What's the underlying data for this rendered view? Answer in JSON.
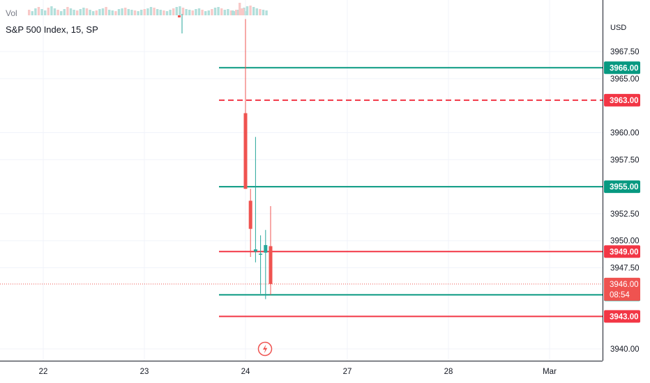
{
  "header": {
    "volume_label": "Vol",
    "title": "S&P 500 Index, 15, SP"
  },
  "currency": "USD",
  "countdown": "08:54",
  "colors": {
    "up": "#26a69a",
    "down": "#ef5350",
    "grid": "#f0f3fa",
    "axis_text": "#131722",
    "green_line": "#089981",
    "red_line": "#f23645"
  },
  "icons": {
    "event_marker": "lightning-bolt-icon"
  },
  "chart_data": {
    "type": "candlestick",
    "title": "S&P 500 Index, 15, SP",
    "y_axis": {
      "ticks": [
        "3967.50",
        "3965.00",
        "3960.00",
        "3957.50",
        "3952.50",
        "3950.00",
        "3947.50",
        "3940.00"
      ],
      "range": [
        3938.6,
        3971.2
      ]
    },
    "x_axis": {
      "ticks": [
        "22",
        "23",
        "24",
        "27",
        "28",
        "Mar"
      ]
    },
    "candles": [
      {
        "open": 3961.8,
        "high": 3970.5,
        "low": 3954.8,
        "close": 3954.8
      },
      {
        "open": 3953.7,
        "high": 3954.8,
        "low": 3948.5,
        "close": 3951.1
      },
      {
        "open": 3949.0,
        "high": 3959.6,
        "low": 3948.0,
        "close": 3949.2
      },
      {
        "open": 3948.8,
        "high": 3950.5,
        "low": 3945.1,
        "close": 3948.8
      },
      {
        "open": 3948.9,
        "high": 3951.0,
        "low": 3944.6,
        "close": 3949.6
      },
      {
        "open": 3949.5,
        "high": 3953.2,
        "low": 3945.0,
        "close": 3946.0
      }
    ],
    "levels": [
      {
        "label": "3966.00",
        "value": 3966.0,
        "style": "solid",
        "color": "green"
      },
      {
        "label": "3963.00",
        "value": 3963.0,
        "style": "dashed",
        "color": "red"
      },
      {
        "label": "3955.00",
        "value": 3955.0,
        "style": "solid",
        "color": "green"
      },
      {
        "label": "3949.00",
        "value": 3949.0,
        "style": "solid",
        "color": "red"
      },
      {
        "label": "3945.00",
        "value": 3945.0,
        "style": "solid",
        "color": "green"
      },
      {
        "label": "3943.00",
        "value": 3943.0,
        "style": "solid",
        "color": "red"
      }
    ],
    "last_price": {
      "label": "3946.00",
      "value": 3946.0
    }
  }
}
